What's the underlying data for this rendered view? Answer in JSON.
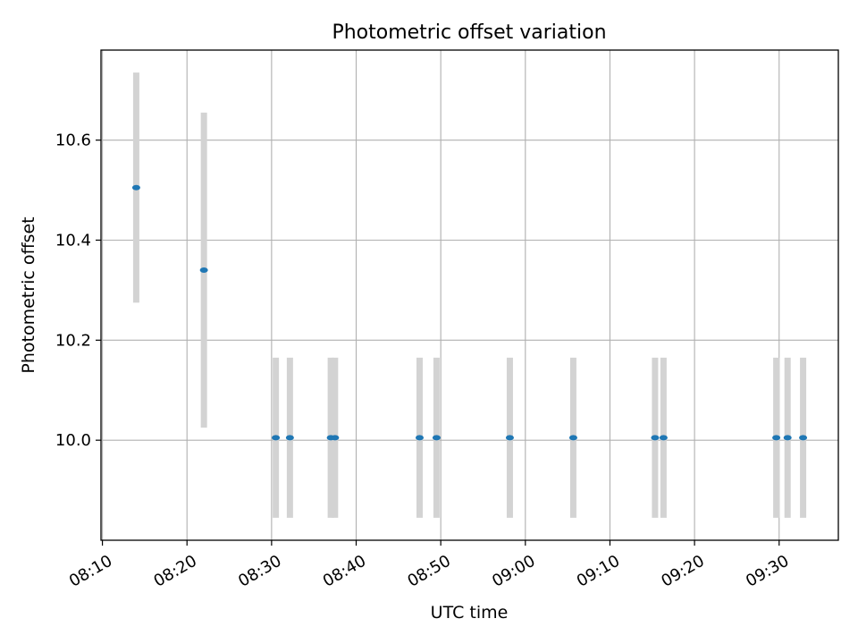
{
  "chart_data": {
    "type": "scatter",
    "title": "Photometric offset variation",
    "xlabel": "UTC time",
    "ylabel": "Photometric offset",
    "x_ticks": [
      "08:10",
      "08:20",
      "08:30",
      "08:40",
      "08:50",
      "09:00",
      "09:10",
      "09:20",
      "09:30"
    ],
    "y_ticks": [
      "10.0",
      "10.2",
      "10.4",
      "10.6"
    ],
    "y_tick_values": [
      10.0,
      10.2,
      10.4,
      10.6
    ],
    "xlim": [
      "08:09:50",
      "09:37:00"
    ],
    "ylim": [
      9.8,
      10.78
    ],
    "grid": true,
    "colors": {
      "point": "#1f77b4",
      "errorbar": "#d3d3d3",
      "grid": "#b0b0b0"
    },
    "points": [
      {
        "time": "08:14:00",
        "offset": 10.505,
        "err": 0.23
      },
      {
        "time": "08:22:00",
        "offset": 10.34,
        "err": 0.315
      },
      {
        "time": "08:30:30",
        "offset": 10.005,
        "err": 0.16
      },
      {
        "time": "08:32:10",
        "offset": 10.005,
        "err": 0.16
      },
      {
        "time": "08:37:00",
        "offset": 10.005,
        "err": 0.16
      },
      {
        "time": "08:37:30",
        "offset": 10.005,
        "err": 0.16
      },
      {
        "time": "08:47:30",
        "offset": 10.005,
        "err": 0.16
      },
      {
        "time": "08:49:30",
        "offset": 10.005,
        "err": 0.16
      },
      {
        "time": "08:58:10",
        "offset": 10.005,
        "err": 0.16
      },
      {
        "time": "09:05:40",
        "offset": 10.005,
        "err": 0.16
      },
      {
        "time": "09:15:20",
        "offset": 10.005,
        "err": 0.16
      },
      {
        "time": "09:16:20",
        "offset": 10.005,
        "err": 0.16
      },
      {
        "time": "09:29:40",
        "offset": 10.005,
        "err": 0.16
      },
      {
        "time": "09:31:00",
        "offset": 10.005,
        "err": 0.16
      },
      {
        "time": "09:32:50",
        "offset": 10.005,
        "err": 0.16
      }
    ]
  }
}
